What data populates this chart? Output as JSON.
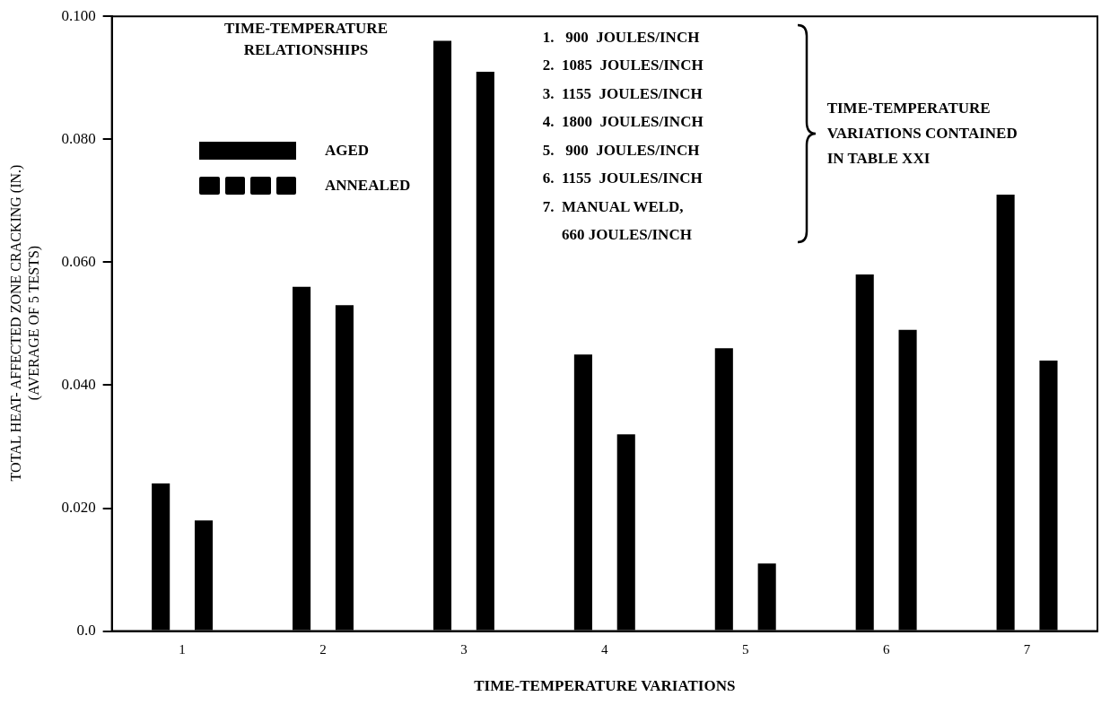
{
  "chart_data": {
    "type": "bar",
    "xlabel": "TIME-TEMPERATURE VARIATIONS",
    "ylabel": "TOTAL HEAT- AFFECTED ZONE CRACKING (IN.)\n(AVERAGE OF 5 TESTS)",
    "legend_title": "TIME-TEMPERATURE\nRELATIONSHIPS",
    "categories": [
      "1",
      "2",
      "3",
      "4",
      "5",
      "6",
      "7"
    ],
    "series": [
      {
        "name": "ANNEALED",
        "color": "#000000",
        "line_style": "dashed",
        "values": [
          0.024,
          0.056,
          0.096,
          0.045,
          0.046,
          0.058,
          0.071
        ]
      },
      {
        "name": "AGED",
        "color": "#000000",
        "line_style": "solid",
        "values": [
          0.018,
          0.053,
          0.091,
          0.032,
          0.011,
          0.049,
          0.044
        ]
      }
    ],
    "ylim": [
      0,
      0.1
    ],
    "yticks": [
      {
        "value": 0,
        "label": "0.0"
      },
      {
        "value": 0.02,
        "label": "0.020"
      },
      {
        "value": 0.04,
        "label": "0.040"
      },
      {
        "value": 0.06,
        "label": "0.060"
      },
      {
        "value": 0.08,
        "label": "0.080"
      },
      {
        "value": 0.1,
        "label": "0.100"
      }
    ],
    "grid": false,
    "legend": "top left",
    "annotations": [
      "1.   900  JOULES/INCH",
      "2.  1085  JOULES/INCH",
      "3.  1155  JOULES/INCH",
      "4.  1800  JOULES/INCH",
      "5.   900  JOULES/INCH",
      "6.  1155  JOULES/INCH",
      "7.  MANUAL WELD,\n     660 JOULES/INCH",
      "TIME-TEMPERATURE\nVARIATIONS CONTAINED\nIN TABLE XXI"
    ]
  }
}
